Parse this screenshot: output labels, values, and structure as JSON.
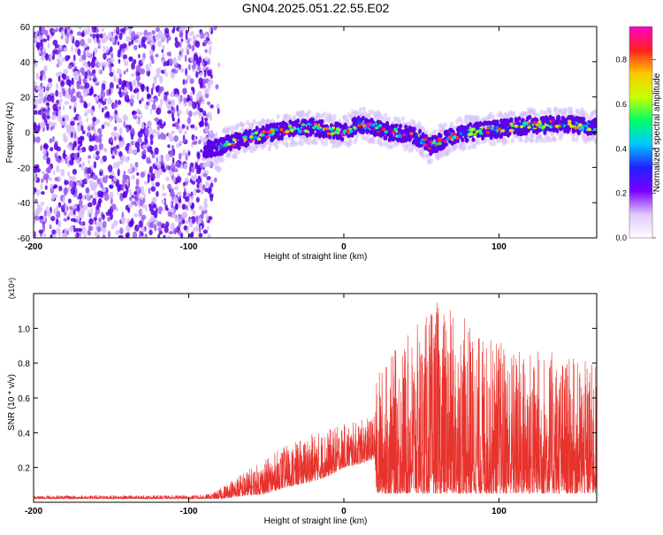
{
  "title": "GN04.2025.051.22.55.E02",
  "colors": {
    "snr_line": "#e8322c",
    "frame": "#000000",
    "track": "#5a00e6"
  },
  "chart_data": [
    {
      "type": "heatmap",
      "xlabel": "Height of straight line (km)",
      "ylabel": "Frequency (Hz)",
      "xlim": [
        -200,
        163
      ],
      "ylim": [
        -60,
        60
      ],
      "x_ticks": [
        "-200",
        "-100",
        "0",
        "100"
      ],
      "y_ticks": [
        "60",
        "40",
        "20",
        "0",
        "-20",
        "-40",
        "-60"
      ],
      "noise_region_x": [
        -200,
        -85
      ],
      "track": {
        "x": [
          -90,
          -80,
          -70,
          -60,
          -50,
          -40,
          -30,
          -20,
          -10,
          0,
          5,
          10,
          20,
          30,
          40,
          50,
          55,
          60,
          70,
          80,
          90,
          100,
          110,
          120,
          130,
          140,
          150,
          163
        ],
        "y": [
          -10,
          -8,
          -5,
          -3,
          -1,
          1,
          2,
          3,
          1,
          0,
          2,
          5,
          3,
          0,
          -1,
          -4,
          -8,
          -6,
          -2,
          0,
          1,
          2,
          3,
          4,
          4,
          5,
          4,
          3
        ]
      },
      "colorbar": {
        "label": "Normalized spectral amplitude",
        "range": [
          0.0,
          0.95
        ],
        "ticks": [
          "0.0",
          "0.2",
          "0.4",
          "0.6",
          "0.8"
        ],
        "colormap": [
          "#ffffff",
          "#e0c8ff",
          "#7a00ff",
          "#2020ff",
          "#00c8ff",
          "#00ff66",
          "#c8ff00",
          "#ffc800",
          "#ff2020",
          "#ff00c8"
        ]
      }
    },
    {
      "type": "line",
      "xlabel": "Height of straight line (km)",
      "ylabel": "SNR (10 * v/v)",
      "scale_label": "(x10⁴)",
      "xlim": [
        -200,
        163
      ],
      "ylim": [
        0.0,
        1.2
      ],
      "x_ticks": [
        "-200",
        "-100",
        "0",
        "100"
      ],
      "y_ticks": [
        "0.2",
        "0.4",
        "0.6",
        "0.8",
        "1.0"
      ],
      "envelope": {
        "x": [
          -200,
          -100,
          -85,
          -80,
          -70,
          -60,
          -50,
          -40,
          -30,
          -20,
          -10,
          0,
          10,
          20,
          21,
          30,
          40,
          50,
          60,
          70,
          80,
          90,
          100,
          110,
          120,
          130,
          140,
          150,
          163
        ],
        "low": [
          0.02,
          0.02,
          0.02,
          0.02,
          0.03,
          0.04,
          0.05,
          0.08,
          0.1,
          0.12,
          0.15,
          0.2,
          0.22,
          0.25,
          0.05,
          0.05,
          0.05,
          0.05,
          0.05,
          0.05,
          0.05,
          0.05,
          0.05,
          0.05,
          0.05,
          0.05,
          0.05,
          0.05,
          0.05
        ],
        "high": [
          0.04,
          0.04,
          0.05,
          0.08,
          0.15,
          0.2,
          0.25,
          0.32,
          0.35,
          0.4,
          0.42,
          0.45,
          0.47,
          0.5,
          0.75,
          0.85,
          0.95,
          1.05,
          1.15,
          1.1,
          1.05,
          0.95,
          0.95,
          0.9,
          0.9,
          0.88,
          0.85,
          0.82,
          0.8
        ]
      }
    }
  ]
}
